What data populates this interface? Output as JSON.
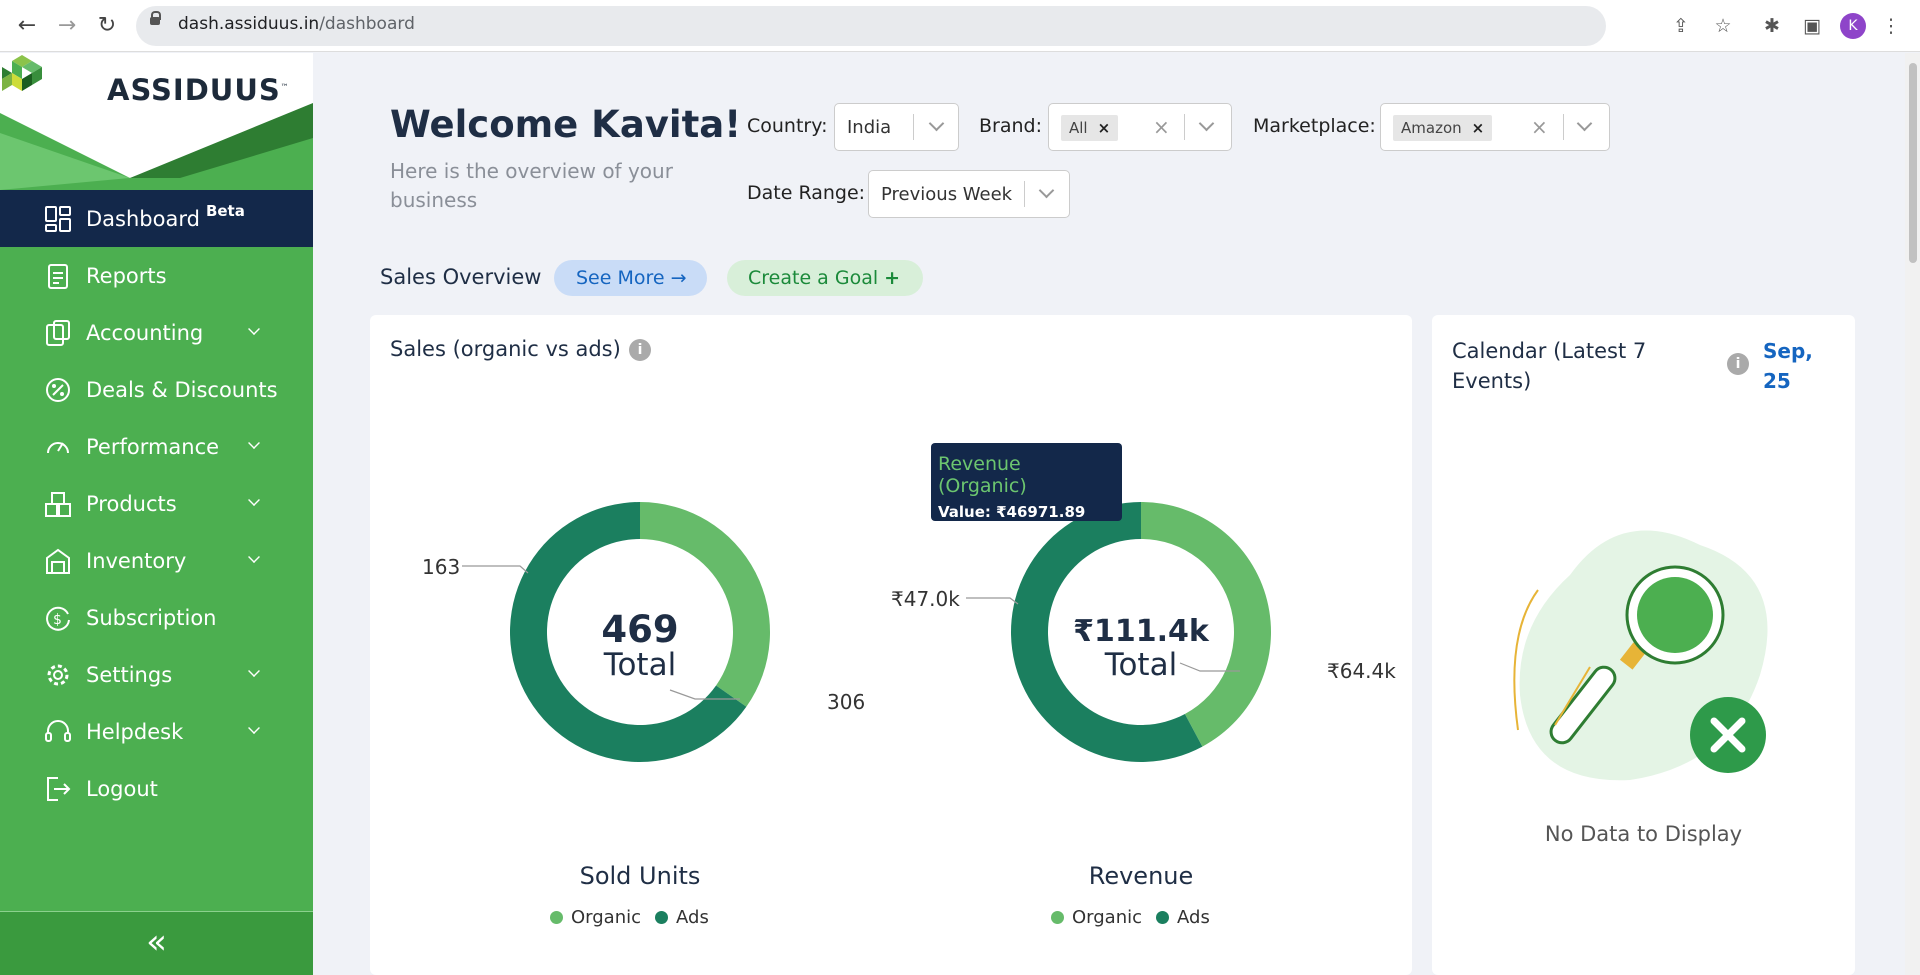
{
  "browser": {
    "url_host": "dash.assiduus.in",
    "url_path": "/dashboard",
    "profile_initial": "K"
  },
  "brand": {
    "logo_text": "ASSIDUUS",
    "tm": "™"
  },
  "sidebar": {
    "items": [
      {
        "label": "Dashboard",
        "badge": "Beta"
      },
      {
        "label": "Reports"
      },
      {
        "label": "Accounting"
      },
      {
        "label": "Deals & Discounts"
      },
      {
        "label": "Performance"
      },
      {
        "label": "Products"
      },
      {
        "label": "Inventory"
      },
      {
        "label": "Subscription"
      },
      {
        "label": "Settings"
      },
      {
        "label": "Helpdesk"
      },
      {
        "label": "Logout"
      }
    ],
    "collapse_glyph": "«"
  },
  "header": {
    "welcome": "Welcome Kavita!",
    "subtitle": "Here is the overview of your business"
  },
  "filters": {
    "country_label": "Country:",
    "country_value": "India",
    "brand_label": "Brand:",
    "brand_chip": "All",
    "marketplace_label": "Marketplace:",
    "marketplace_chip": "Amazon",
    "date_label": "Date Range:",
    "date_value": "Previous Week"
  },
  "sales_overview": {
    "title": "Sales Overview",
    "see_more": "See More",
    "create_goal": "Create a Goal"
  },
  "sales_card": {
    "title": "Sales (organic vs ads)",
    "info": "i",
    "units": {
      "total": "469",
      "total_label": "Total",
      "label_organic": "163",
      "label_ads": "306",
      "title": "Sold Units"
    },
    "revenue": {
      "total": "₹111.4k",
      "total_label": "Total",
      "label_organic": "₹47.0k",
      "label_ads": "₹64.4k",
      "title": "Revenue"
    },
    "legend": {
      "organic": "Organic",
      "ads": "Ads"
    },
    "tooltip": {
      "title": "Revenue (Organic)",
      "value": "Value: ₹46971.89"
    }
  },
  "calendar_card": {
    "title": "Calendar (Latest 7 Events)",
    "date": "Sep, 25",
    "empty": "No Data to Display"
  },
  "colors": {
    "organic": "#66bb6a",
    "ads": "#1b7f5f"
  },
  "chart_data": [
    {
      "type": "pie",
      "title": "Sold Units",
      "categories": [
        "Organic",
        "Ads"
      ],
      "values": [
        163,
        306
      ],
      "center_text": "469 Total"
    },
    {
      "type": "pie",
      "title": "Revenue",
      "categories": [
        "Organic",
        "Ads"
      ],
      "values": [
        46971.89,
        64400
      ],
      "center_text": "₹111.4k Total"
    }
  ]
}
